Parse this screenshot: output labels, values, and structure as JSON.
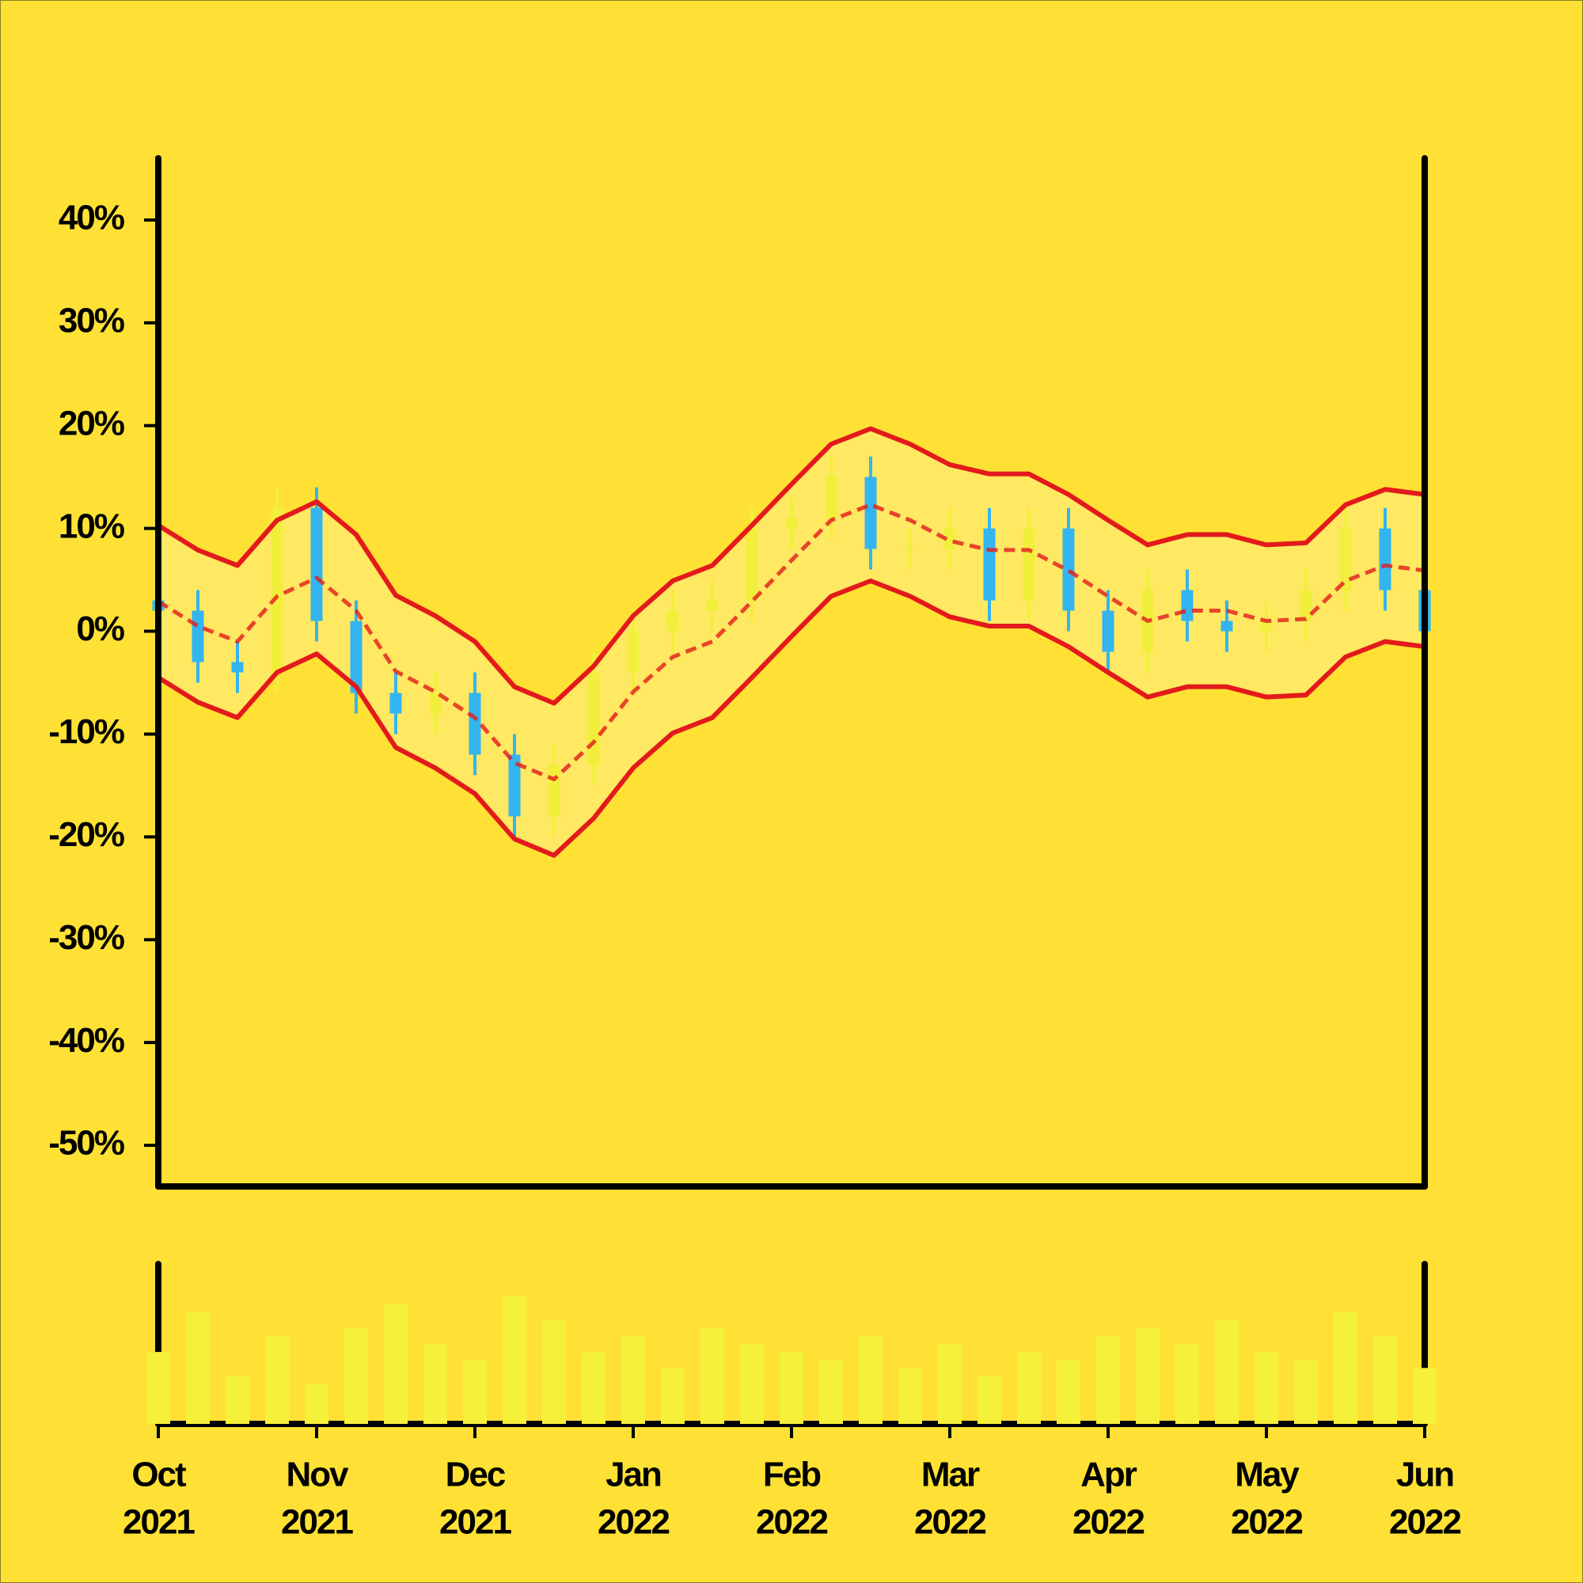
{
  "chart_data": {
    "type": "candlestick",
    "x": [
      0,
      0.25,
      0.5,
      0.75,
      1,
      1.25,
      1.5,
      1.75,
      2,
      2.25,
      2.5,
      2.75,
      3,
      3.25,
      3.5,
      3.75,
      4,
      4.25,
      4.5,
      4.75,
      5,
      5.25,
      5.5,
      5.75,
      6,
      6.25,
      6.5,
      6.75,
      7,
      7.25,
      7.5,
      7.75,
      8
    ],
    "open": [
      3,
      2,
      -3,
      -4,
      12,
      1,
      -6,
      -8,
      -6,
      -12,
      -18,
      -13,
      -4,
      0,
      2,
      3,
      10,
      11,
      15,
      8,
      8,
      10,
      3,
      10,
      2,
      -2,
      4,
      1,
      0,
      1,
      4,
      10,
      4
    ],
    "high": [
      5,
      4,
      -1,
      14,
      14,
      3,
      -4,
      -4,
      -4,
      -10,
      -11,
      -2,
      2,
      4,
      5,
      12,
      13,
      17,
      17,
      10,
      12,
      12,
      12,
      12,
      4,
      6,
      6,
      3,
      3,
      6,
      12,
      12,
      6
    ],
    "low": [
      0,
      -5,
      -6,
      -6,
      -1,
      -8,
      -10,
      -10,
      -14,
      -20,
      -20,
      -15,
      -6,
      -2,
      0,
      1,
      8,
      9,
      6,
      6,
      6,
      1,
      1,
      0,
      -4,
      -4,
      -1,
      -2,
      -2,
      -1,
      2,
      2,
      -2
    ],
    "close": [
      2,
      -3,
      -4,
      12,
      1,
      -6,
      -8,
      -6,
      -12,
      -18,
      -13,
      -4,
      0,
      2,
      3,
      10,
      11,
      15,
      8,
      8,
      10,
      3,
      10,
      2,
      -2,
      4,
      1,
      0,
      1,
      4,
      10,
      4,
      0
    ],
    "colors": {
      "up": "#f2ef3c",
      "down": "#33b5f0"
    },
    "bands": {
      "upper": [
        10.3,
        7.9,
        6.4,
        10.8,
        12.6,
        9.4,
        3.5,
        1.5,
        -1.0,
        -5.4,
        -7.0,
        -3.4,
        1.5,
        4.9,
        6.4,
        10.3,
        14.3,
        18.2,
        19.7,
        18.2,
        16.2,
        15.3,
        15.3,
        13.3,
        10.8,
        8.4,
        9.4,
        9.4,
        8.4,
        8.6,
        12.3,
        13.8,
        13.3
      ],
      "middle": [
        2.9,
        0.5,
        -1.0,
        3.4,
        5.2,
        2.0,
        -3.9,
        -5.9,
        -8.4,
        -12.8,
        -14.4,
        -10.8,
        -5.9,
        -2.5,
        -1.0,
        2.9,
        6.9,
        10.8,
        12.3,
        10.8,
        8.8,
        7.9,
        7.9,
        5.9,
        3.4,
        1.0,
        2.0,
        2.0,
        1.0,
        1.2,
        4.9,
        6.4,
        5.9
      ],
      "lower": [
        -4.5,
        -6.9,
        -8.4,
        -4.0,
        -2.2,
        -5.4,
        -11.3,
        -13.3,
        -15.8,
        -20.2,
        -21.8,
        -18.2,
        -13.3,
        -9.9,
        -8.4,
        -4.5,
        -0.5,
        3.4,
        4.9,
        3.4,
        1.4,
        0.5,
        0.5,
        -1.5,
        -4.0,
        -6.4,
        -5.4,
        -5.4,
        -6.4,
        -6.2,
        -2.5,
        -1.0,
        -1.5
      ],
      "color": "#e31a1c",
      "fill": "#ffe96a"
    },
    "volume": {
      "values": [
        45,
        70,
        30,
        55,
        25,
        60,
        75,
        50,
        40,
        80,
        65,
        45,
        55,
        35,
        60,
        50,
        45,
        40,
        55,
        35,
        50,
        30,
        45,
        40,
        55,
        60,
        50,
        65,
        45,
        40,
        70,
        55,
        35
      ],
      "color": "#f5f03a",
      "ylim": [
        0,
        100
      ]
    },
    "xlim": [
      0,
      8
    ],
    "xticks": [
      {
        "value": 0,
        "label": [
          "Oct",
          "2021"
        ]
      },
      {
        "value": 1,
        "label": [
          "Nov",
          "2021"
        ]
      },
      {
        "value": 2,
        "label": [
          "Dec",
          "2021"
        ]
      },
      {
        "value": 3,
        "label": [
          "Jan",
          "2022"
        ]
      },
      {
        "value": 4,
        "label": [
          "Feb",
          "2022"
        ]
      },
      {
        "value": 5,
        "label": [
          "Mar",
          "2022"
        ]
      },
      {
        "value": 6,
        "label": [
          "Apr",
          "2022"
        ]
      },
      {
        "value": 7,
        "label": [
          "May",
          "2022"
        ]
      },
      {
        "value": 8,
        "label": [
          "Jun",
          "2022"
        ]
      }
    ],
    "ylim": [
      -54,
      46
    ],
    "yticks": [
      {
        "value": -50,
        "label": "-50%"
      },
      {
        "value": -40,
        "label": "-40%"
      },
      {
        "value": -30,
        "label": "-30%"
      },
      {
        "value": -20,
        "label": "-20%"
      },
      {
        "value": -10,
        "label": "-10%"
      },
      {
        "value": 0,
        "label": "0%"
      },
      {
        "value": 10,
        "label": "10%"
      },
      {
        "value": 20,
        "label": "20%"
      },
      {
        "value": 30,
        "label": "30%"
      },
      {
        "value": 40,
        "label": "40%"
      }
    ]
  }
}
